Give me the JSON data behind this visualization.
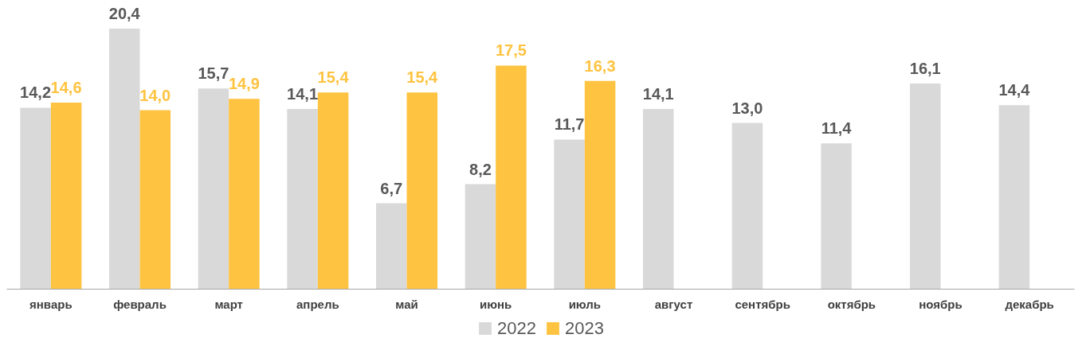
{
  "chart_data": {
    "type": "bar",
    "categories": [
      "январь",
      "февраль",
      "март",
      "апрель",
      "май",
      "июнь",
      "июль",
      "август",
      "сентябрь",
      "октябрь",
      "ноябрь",
      "декабрь"
    ],
    "series": [
      {
        "name": "2022",
        "color": "#d9d9d9",
        "values": [
          14.2,
          20.4,
          15.7,
          14.1,
          6.7,
          8.2,
          11.7,
          14.1,
          13.0,
          11.4,
          16.1,
          14.4
        ],
        "value_labels": [
          "14,2",
          "20,4",
          "15,7",
          "14,1",
          "6,7",
          "8,2",
          "11,7",
          "14,1",
          "13,0",
          "11,4",
          "16,1",
          "14,4"
        ]
      },
      {
        "name": "2023",
        "color": "#fec340",
        "values": [
          14.6,
          14.0,
          14.9,
          15.4,
          15.4,
          17.5,
          16.3,
          null,
          null,
          null,
          null,
          null
        ],
        "value_labels": [
          "14,6",
          "14,0",
          "14,9",
          "15,4",
          "15,4",
          "17,5",
          "16,3",
          null,
          null,
          null,
          null,
          null
        ]
      }
    ],
    "legend": "bottom",
    "grid": false
  }
}
